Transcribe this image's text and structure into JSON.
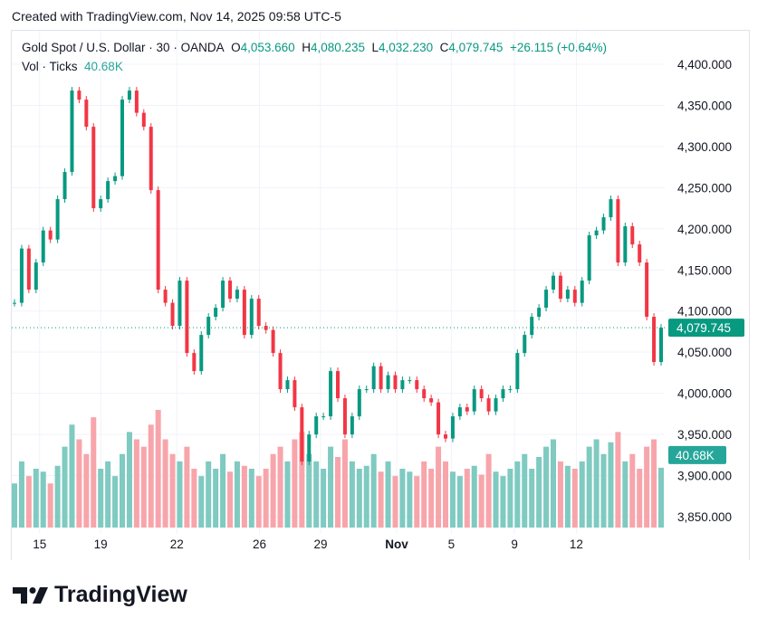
{
  "header": {
    "created": "Created with TradingView.com, Nov 14, 2025 09:58 UTC-5"
  },
  "legend": {
    "symbol": "Gold Spot / U.S. Dollar · 30 · OANDA",
    "o_label": "O",
    "o": "4,053.660",
    "h_label": "H",
    "h": "4,080.235",
    "l_label": "L",
    "l": "4,032.230",
    "c_label": "C",
    "c": "4,079.745",
    "change": "+26.115 (+0.64%)",
    "vol_label": "Vol · Ticks",
    "vol": "40.68K"
  },
  "brand": {
    "name": "TradingView"
  },
  "colors": {
    "up": "#089981",
    "down": "#f23645",
    "vol_up": "#7fcac1",
    "vol_down": "#f7a5ab",
    "last_price_bg": "#089981",
    "vol_badge_bg": "#26a69a"
  },
  "chart_data": {
    "type": "candlestick",
    "ylim": [
      3830,
      4420
    ],
    "y_ticks": [
      "4,400.000",
      "4,350.000",
      "4,300.000",
      "4,250.000",
      "4,200.000",
      "4,150.000",
      "4,100.000",
      "4,050.000",
      "4,000.000",
      "3,950.000",
      "3,900.000",
      "3,850.000"
    ],
    "y_tick_values": [
      4400,
      4350,
      4300,
      4250,
      4200,
      4150,
      4100,
      4050,
      4000,
      3950,
      3900,
      3850
    ],
    "x_ticks": [
      {
        "label": "15",
        "index": 3.5
      },
      {
        "label": "19",
        "index": 12
      },
      {
        "label": "22",
        "index": 22.6
      },
      {
        "label": "26",
        "index": 34.1
      },
      {
        "label": "29",
        "index": 42.6
      },
      {
        "label": "Nov",
        "index": 53.2
      },
      {
        "label": "5",
        "index": 60.8
      },
      {
        "label": "9",
        "index": 69.6
      },
      {
        "label": "12",
        "index": 78.2
      }
    ],
    "close": [
      4110,
      4176,
      4126,
      4159,
      4198,
      4187,
      4236,
      4269,
      4368,
      4357,
      4324,
      4225,
      4236,
      4258,
      4264,
      4357,
      4368,
      4341,
      4324,
      4247,
      4126,
      4110,
      4082,
      4137,
      4049,
      4027,
      4071,
      4093,
      4104,
      4137,
      4115,
      4126,
      4071,
      4115,
      4082,
      4077,
      4049,
      4005,
      4016,
      3983,
      3917,
      3950,
      3972,
      3972,
      4027,
      3994,
      3950,
      3972,
      4005,
      4005,
      4033,
      4005,
      4022,
      4005,
      4016,
      4016,
      4005,
      3994,
      3989,
      3950,
      3945,
      3972,
      3983,
      3978,
      4005,
      3994,
      3978,
      3994,
      4005,
      4005,
      4049,
      4071,
      4093,
      4104,
      4126,
      4143,
      4115,
      4126,
      4110,
      4137,
      4192,
      4198,
      4214,
      4236,
      4159,
      4203,
      4181,
      4159,
      4093,
      4038,
      4079.745
    ],
    "volume_k": [
      30,
      45,
      35,
      40,
      38,
      30,
      42,
      55,
      70,
      60,
      50,
      75,
      40,
      45,
      35,
      50,
      65,
      60,
      55,
      70,
      80,
      60,
      50,
      45,
      55,
      40,
      35,
      45,
      40,
      50,
      38,
      45,
      42,
      40,
      35,
      40,
      50,
      55,
      45,
      60,
      65,
      50,
      45,
      40,
      55,
      48,
      60,
      45,
      40,
      42,
      50,
      38,
      45,
      35,
      40,
      38,
      35,
      45,
      40,
      55,
      45,
      38,
      35,
      40,
      42,
      36,
      50,
      38,
      35,
      40,
      45,
      50,
      40,
      48,
      55,
      60,
      45,
      42,
      40,
      45,
      55,
      60,
      50,
      58,
      65,
      45,
      50,
      40,
      55,
      60,
      40.68
    ],
    "last_price": "4,079.745",
    "last_volume": "40.68K"
  }
}
